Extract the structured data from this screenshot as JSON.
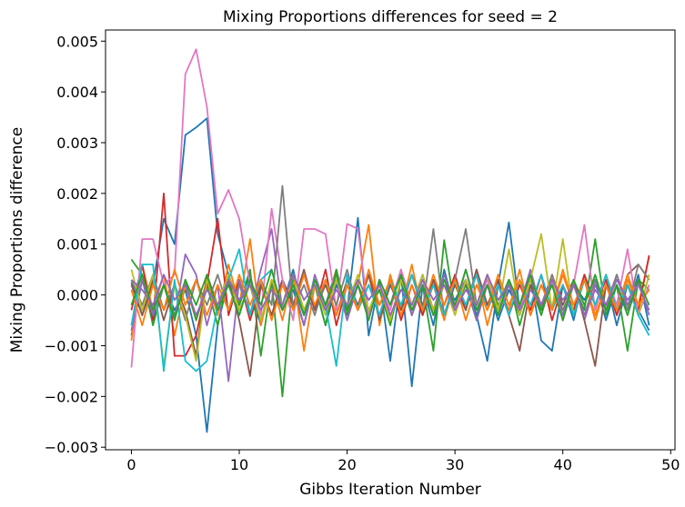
{
  "chart_data": {
    "type": "line",
    "title": "Mixing Proportions differences for seed = 2",
    "xlabel": "Gibbs Iteration Number",
    "ylabel": "Mixing Proportions difference",
    "xlim": [
      -2.4,
      50.4
    ],
    "ylim": [
      -0.00305,
      0.00522
    ],
    "xticks": [
      0,
      10,
      20,
      30,
      40,
      50
    ],
    "xtick_labels": [
      "0",
      "10",
      "20",
      "30",
      "40",
      "50"
    ],
    "yticks": [
      -0.003,
      -0.002,
      -0.001,
      0.0,
      0.001,
      0.002,
      0.003,
      0.004,
      0.005
    ],
    "ytick_labels": [
      "−0.003",
      "−0.002",
      "−0.001",
      "0.000",
      "0.001",
      "0.002",
      "0.003",
      "0.004",
      "0.005"
    ],
    "grid": false,
    "x": [
      0,
      1,
      2,
      3,
      4,
      5,
      6,
      7,
      8,
      9,
      10,
      11,
      12,
      13,
      14,
      15,
      16,
      17,
      18,
      19,
      20,
      21,
      22,
      23,
      24,
      25,
      26,
      27,
      28,
      29,
      30,
      31,
      32,
      33,
      34,
      35,
      36,
      37,
      38,
      39,
      40,
      41,
      42,
      43,
      44,
      45,
      46,
      47,
      48
    ],
    "series": [
      {
        "color": "#1f77b4",
        "values": [
          0.00025,
          -0.0004,
          0.0002,
          0.0015,
          0.001,
          0.00315,
          0.0033,
          0.00348,
          0.0012,
          0.0004,
          -0.0003,
          0.0002,
          -0.0006,
          0.0003,
          -0.0002,
          0.0005,
          -0.0004,
          0.0002,
          -0.0006,
          0.0002,
          -0.0003,
          0.00152,
          -0.0008,
          0.0003,
          -0.0013,
          0.0004,
          -0.0018,
          0.0002,
          -0.0006,
          0.0005,
          -0.0003,
          0.0002,
          -0.0004,
          -0.0013,
          0.0002,
          0.00143,
          -0.0003,
          0.0004,
          -0.0009,
          -0.0011,
          0.0002,
          -0.0005,
          0.0004,
          -0.0002,
          0.0003,
          -0.0006,
          0.0002,
          -0.0003,
          -0.0007
        ]
      },
      {
        "color": "#1f77b4",
        "values": [
          -0.0008,
          0.0003,
          -0.0005,
          0.0002,
          -0.0003,
          0.0001,
          -0.0008,
          -0.0027,
          -0.0006,
          0.0003,
          -0.0002,
          0.0004,
          -0.0005,
          0.0002,
          -0.0003,
          0.0001,
          -0.0006,
          0.0003,
          -0.0002,
          0.0005,
          -0.0004,
          0.0002,
          -0.0003,
          0.0001,
          -0.0005,
          0.0003,
          -0.0002,
          0.0004,
          -0.0003,
          0.0002,
          -0.0001,
          0.0003,
          -0.0004,
          0.0002,
          -0.0005,
          0.0001,
          -0.0003,
          0.0004,
          -0.0002,
          0.0003,
          -0.0004,
          0.0002,
          -0.0001,
          0.0003,
          -0.0005,
          0.0002,
          -0.0003,
          0.0004,
          -0.0006
        ]
      },
      {
        "color": "#ff7f0e",
        "values": [
          -0.0009,
          0.0006,
          -0.0003,
          0.0004,
          -0.0008,
          0.0002,
          -0.0005,
          0.0003,
          -0.0004,
          0.0006,
          -0.0002,
          0.0011,
          -0.0006,
          0.0003,
          -0.0005,
          0.0004,
          -0.0011,
          0.0002,
          -0.0003,
          0.0005,
          -0.0004,
          0.0002,
          0.00138,
          -0.0006,
          0.0004,
          -0.0003,
          0.0006,
          -0.0004,
          0.0002,
          -0.0005,
          0.0003,
          -0.0002,
          0.0004,
          -0.0006,
          0.0002,
          -0.0003,
          0.0005,
          -0.0004,
          0.0002,
          -0.0003,
          0.0004,
          -0.0002,
          0.0003,
          -0.0005,
          0.0002,
          -0.0004,
          0.0003,
          -0.0002,
          0.00075
        ]
      },
      {
        "color": "#2ca02c",
        "values": [
          0.0007,
          0.0004,
          -0.0006,
          0.0002,
          -0.0004,
          0.0003,
          -0.0005,
          0.0002,
          -0.0006,
          0.0004,
          -0.0002,
          0.0005,
          -0.0012,
          0.0003,
          -0.002,
          0.0004,
          -0.0003,
          0.0002,
          -0.0006,
          0.0005,
          -0.0004,
          0.0002,
          -0.0003,
          0.0001,
          -0.0006,
          0.0003,
          -0.0004,
          0.0002,
          -0.0011,
          0.00108,
          -0.0003,
          0.0002,
          -0.0005,
          0.0004,
          -0.0002,
          0.0003,
          -0.0006,
          0.0002,
          -0.0004,
          0.0003,
          -0.0005,
          0.0002,
          -0.0003,
          0.0011,
          -0.0004,
          0.0002,
          -0.0011,
          0.0003,
          0.0001
        ]
      },
      {
        "color": "#d62728",
        "values": [
          -0.0003,
          0.0006,
          -0.0005,
          0.002,
          -0.0012,
          -0.0012,
          -0.0008,
          0.0002,
          0.0015,
          -0.0004,
          0.0003,
          -0.0005,
          0.0002,
          -0.0004,
          0.0003,
          -0.0002,
          0.0004,
          -0.0003,
          0.0005,
          -0.0006,
          0.0002,
          -0.0003,
          0.0004,
          -0.0002,
          0.0003,
          -0.0005,
          0.0002,
          -0.0004,
          0.0003,
          -0.0002,
          0.0004,
          -0.0003,
          0.0005,
          -0.0002,
          0.0003,
          -0.0004,
          0.0002,
          -0.0003,
          0.0004,
          -0.0005,
          0.0002,
          -0.0003,
          0.0004,
          -0.0002,
          0.0003,
          -0.0004,
          0.0002,
          -0.0003,
          0.00078
        ]
      },
      {
        "color": "#9467bd",
        "values": [
          -0.0007,
          0.0003,
          -0.0004,
          0.0002,
          -0.0005,
          0.0008,
          0.0004,
          -0.0006,
          0.0002,
          -0.0017,
          0.0003,
          -0.0004,
          0.0005,
          0.0013,
          -0.0003,
          0.0002,
          -0.0006,
          0.0004,
          -0.0002,
          0.0003,
          -0.0005,
          0.0002,
          -0.0004,
          0.0003,
          -0.0002,
          0.0005,
          -0.0004,
          0.0002,
          -0.0003,
          0.0004,
          -0.0002,
          0.0003,
          -0.0005,
          0.0002,
          -0.0004,
          0.0003,
          -0.0002,
          0.0005,
          -0.0003,
          0.0002,
          -0.0004,
          0.0003,
          -0.0005,
          0.0002,
          -0.0003,
          0.0004,
          -0.0002,
          0.0003,
          -0.0004
        ]
      },
      {
        "color": "#8c564b",
        "values": [
          0.0002,
          -0.0004,
          0.0003,
          -0.0005,
          0.0002,
          -0.0003,
          -0.0012,
          0.0004,
          -0.0002,
          0.0003,
          -0.0005,
          -0.0016,
          0.0002,
          -0.0004,
          0.0003,
          -0.0002,
          0.0005,
          -0.0003,
          0.0002,
          -0.0004,
          0.0003,
          -0.0002,
          0.0004,
          -0.0005,
          0.0002,
          -0.0003,
          0.0004,
          -0.0002,
          0.0003,
          -0.0004,
          0.0002,
          -0.0003,
          0.0005,
          -0.0002,
          0.0003,
          -0.0004,
          -0.0011,
          0.0002,
          -0.0003,
          0.0004,
          -0.0002,
          0.0003,
          -0.0005,
          -0.0014,
          0.0002,
          -0.0003,
          0.0004,
          0.0006,
          0.0003
        ]
      },
      {
        "color": "#e377c2",
        "values": [
          -0.00143,
          0.0011,
          0.0011,
          0.0002,
          0.0004,
          0.00435,
          0.00484,
          0.00371,
          0.0016,
          0.00207,
          0.0015,
          0.0002,
          -0.0004,
          0.0017,
          0.0003,
          -0.0005,
          0.0013,
          0.0013,
          0.0012,
          -0.0003,
          0.0014,
          0.0013,
          -0.0004,
          0.0002,
          -0.0003,
          0.0005,
          -0.0002,
          0.0003,
          -0.0004,
          0.0002,
          -0.0003,
          0.0005,
          -0.0002,
          0.0003,
          -0.0004,
          0.0002,
          -0.0003,
          0.0004,
          -0.0002,
          0.0003,
          -0.0005,
          0.0002,
          0.00138,
          -0.0003,
          0.0004,
          -0.0002,
          0.0009,
          -0.0004,
          0.0002
        ]
      },
      {
        "color": "#7f7f7f",
        "values": [
          0.0003,
          -0.0002,
          0.0004,
          -0.0003,
          0.0002,
          -0.0005,
          0.0003,
          -0.0002,
          0.0004,
          -0.0003,
          0.0002,
          -0.0004,
          0.0003,
          -0.0002,
          0.00215,
          -0.0003,
          0.0002,
          -0.0004,
          0.0003,
          -0.0002,
          0.0005,
          -0.0003,
          0.0002,
          -0.0004,
          0.0003,
          -0.0002,
          0.0004,
          -0.0003,
          0.0013,
          -0.0004,
          0.0003,
          0.0013,
          -0.0002,
          0.0004,
          -0.0003,
          0.0002,
          -0.0004,
          0.0003,
          -0.0002,
          0.0004,
          -0.0003,
          0.0002,
          -0.0004,
          0.0003,
          -0.0002,
          0.0004,
          -0.0003,
          0.0006,
          0.0003
        ]
      },
      {
        "color": "#bcbd22",
        "values": [
          0.0005,
          -0.0003,
          0.0004,
          -0.0014,
          0.0002,
          -0.0004,
          -0.0013,
          0.0003,
          -0.0002,
          0.0004,
          -0.0003,
          0.0002,
          -0.0005,
          0.0003,
          -0.0002,
          0.0004,
          -0.0003,
          0.0002,
          -0.0004,
          0.0003,
          -0.0002,
          0.0004,
          -0.0003,
          0.0002,
          -0.0005,
          0.0003,
          -0.0002,
          0.0004,
          -0.0003,
          0.0002,
          -0.0004,
          0.0003,
          -0.0002,
          0.0004,
          -0.0003,
          0.0009,
          -0.0004,
          0.0003,
          0.0012,
          -0.0003,
          0.0011,
          -0.0004,
          0.0003,
          -0.0002,
          0.0004,
          -0.0003,
          0.0002,
          -0.0004,
          0.0004
        ]
      },
      {
        "color": "#17becf",
        "values": [
          -0.0006,
          0.0006,
          0.0006,
          -0.0015,
          0.0003,
          -0.0013,
          -0.0015,
          -0.0013,
          -0.0002,
          0.0003,
          0.0009,
          -0.0004,
          0.0003,
          0.0005,
          -0.0003,
          0.0002,
          -0.0004,
          0.0003,
          -0.0002,
          -0.0014,
          0.0004,
          -0.0003,
          0.0002,
          -0.0004,
          0.0003,
          -0.0002,
          0.0004,
          -0.0003,
          0.0002,
          -0.0004,
          0.0003,
          -0.0002,
          0.0004,
          -0.0003,
          0.0002,
          -0.0004,
          0.0003,
          -0.0002,
          0.0004,
          -0.0003,
          0.0002,
          -0.0004,
          0.0003,
          -0.0002,
          0.0004,
          -0.0003,
          0.0002,
          -0.0004,
          -0.0008
        ]
      },
      {
        "color": "#ff7f0e",
        "values": [
          0.0001,
          -0.0006,
          0.0002,
          -0.0003,
          0.0005,
          -0.0002,
          0.0003,
          -0.0004,
          0.0002,
          -0.0003,
          0.0004,
          -0.0002,
          0.0003,
          -0.0005,
          0.0002,
          -0.0003,
          0.0004,
          -0.0002,
          0.0003,
          -0.0004,
          0.0002,
          -0.0003,
          0.0005,
          -0.0002,
          0.0003,
          -0.0004,
          0.0002,
          -0.0003,
          0.0004,
          -0.0002,
          0.0003,
          -0.0005,
          0.0002,
          -0.0003,
          0.0004,
          -0.0002,
          0.0003,
          -0.0004,
          0.0002,
          -0.0003,
          0.0005,
          -0.0002,
          0.0003,
          -0.0004,
          0.0002,
          -0.0003,
          0.0004,
          -0.0002,
          0.0001
        ]
      },
      {
        "color": "#2ca02c",
        "values": [
          -0.0002,
          0.0004,
          -0.0003,
          0.0002,
          -0.0005,
          0.0003,
          -0.0002,
          0.0004,
          -0.0003,
          0.0002,
          -0.0004,
          0.0003,
          -0.0002,
          0.0005,
          -0.0003,
          0.0002,
          -0.0004,
          0.0003,
          -0.0002,
          0.0004,
          -0.0003,
          0.0002,
          -0.0005,
          0.0003,
          -0.0002,
          0.0004,
          -0.0003,
          0.0002,
          -0.0004,
          0.0003,
          -0.0002,
          0.0005,
          -0.0003,
          0.0002,
          -0.0004,
          0.0003,
          -0.0002,
          0.0004,
          -0.0003,
          0.0002,
          -0.0005,
          0.0003,
          -0.0002,
          0.0004,
          -0.0003,
          0.0002,
          -0.0004,
          0.0003,
          -0.0002
        ]
      },
      {
        "color": "#9467bd",
        "values": [
          0.0003,
          0.0001,
          -0.0002,
          0.0004,
          -0.0001,
          0.0002,
          -0.0004,
          0.0001,
          -0.0002,
          0.0003,
          -0.0001,
          0.0002,
          -0.0003,
          0.0001,
          -0.0002,
          0.0004,
          -0.0001,
          0.0002,
          -0.0003,
          0.0001,
          -0.0002,
          0.0003,
          -0.0001,
          0.0002,
          -0.0004,
          0.0001,
          -0.0002,
          0.0003,
          -0.0001,
          0.0002,
          -0.0003,
          0.0001,
          -0.0002,
          0.0004,
          -0.0001,
          0.0002,
          -0.0003,
          0.0001,
          -0.0002,
          0.0003,
          -0.0001,
          0.0002,
          -0.0004,
          0.0001,
          -0.0002,
          0.0003,
          -0.0001,
          0.0002,
          -0.0003
        ]
      }
    ]
  }
}
